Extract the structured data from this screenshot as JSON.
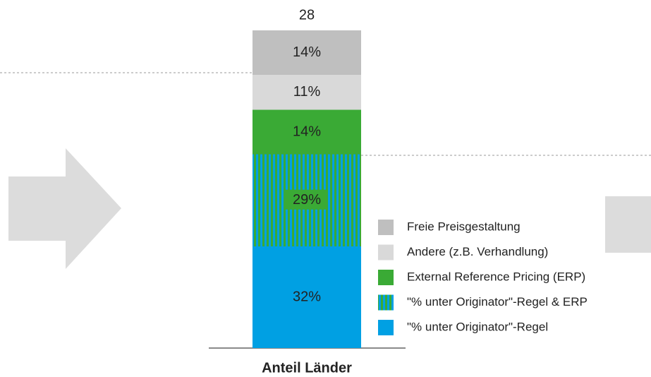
{
  "chart_data": {
    "type": "stacked_bar",
    "categories": [
      "Anteil Länder"
    ],
    "total": 28,
    "ylim": [
      0,
      100
    ],
    "series": [
      {
        "name": "\"% unter Originator\"-Regel",
        "color": "#00a0e3",
        "values": [
          32
        ],
        "value_labels": [
          "32%"
        ]
      },
      {
        "name": "\"% unter Originator\"-Regel & ERP",
        "color": "#00a0e3",
        "stripe_color": "#3aaa35",
        "values": [
          29
        ],
        "value_labels": [
          "29%"
        ]
      },
      {
        "name": "External Reference Pricing (ERP)",
        "color": "#3aaa35",
        "values": [
          14
        ],
        "value_labels": [
          "14%"
        ]
      },
      {
        "name": "Andere (z.B. Verhandlung)",
        "color": "#d9d9d9",
        "values": [
          11
        ],
        "value_labels": [
          "11%"
        ]
      },
      {
        "name": "Freie Preisgestaltung",
        "color": "#bfbfbf",
        "values": [
          14
        ],
        "value_labels": [
          "14%"
        ]
      }
    ]
  }
}
